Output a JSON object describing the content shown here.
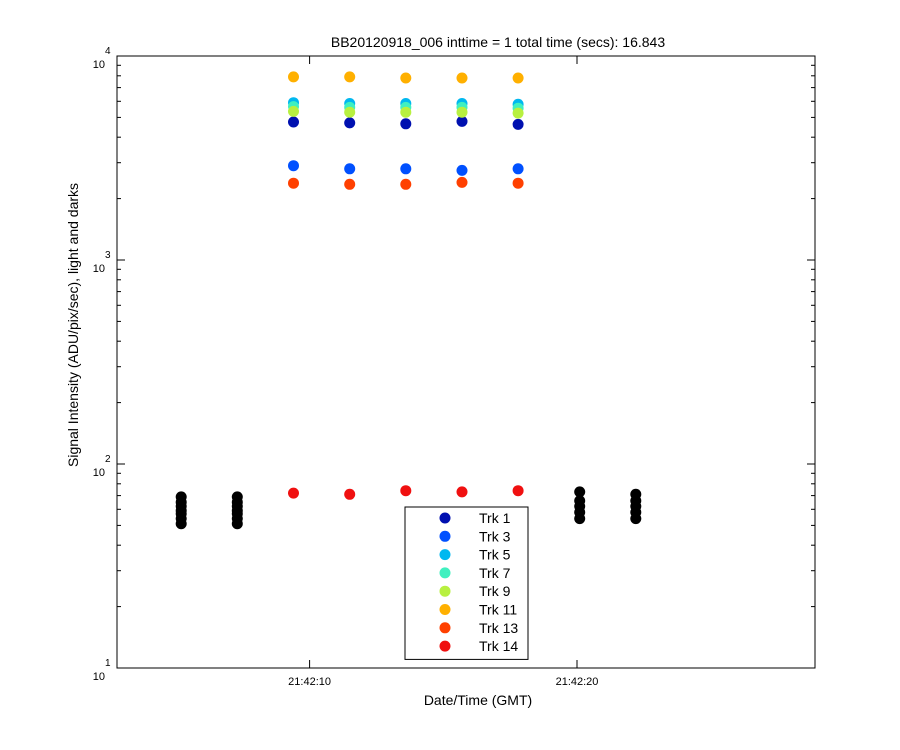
{
  "chart_data": {
    "type": "scatter",
    "title": "BB20120918_006 inttime = 1 total time (secs): 16.843",
    "xlabel": "Date/Time (GMT)",
    "ylabel": "Signal Intensity (ADU/pix/sec), light and darks",
    "yscale": "log",
    "ylim": [
      10,
      10000
    ],
    "y_ticks": [
      {
        "value": 10,
        "base": "10",
        "exp": "1"
      },
      {
        "value": 100,
        "base": "10",
        "exp": "2"
      },
      {
        "value": 1000,
        "base": "10",
        "exp": "3"
      },
      {
        "value": 10000,
        "base": "10",
        "exp": "4"
      }
    ],
    "x_unit": "seconds after 21:42:00",
    "xlim": [
      2.8,
      28.9
    ],
    "x_ticks": [
      {
        "value": 10,
        "label": "21:42:10"
      },
      {
        "value": 20,
        "label": "21:42:20"
      }
    ],
    "grid": false,
    "legend_position": "bottom-center",
    "series": [
      {
        "name": "Trk 1",
        "color": "#0010b0",
        "x": [
          9.4,
          11.5,
          13.6,
          15.7,
          17.8
        ],
        "y": [
          4750,
          4700,
          4650,
          4780,
          4620
        ]
      },
      {
        "name": "Trk 3",
        "color": "#0050ff",
        "x": [
          9.4,
          11.5,
          13.6,
          15.7,
          17.8
        ],
        "y": [
          2900,
          2800,
          2800,
          2750,
          2800
        ]
      },
      {
        "name": "Trk 5",
        "color": "#00b8f0",
        "x": [
          9.4,
          11.5,
          13.6,
          15.7,
          17.8
        ],
        "y": [
          5900,
          5850,
          5850,
          5850,
          5800
        ]
      },
      {
        "name": "Trk 7",
        "color": "#40f0c0",
        "x": [
          9.4,
          11.5,
          13.6,
          15.7,
          17.8
        ],
        "y": [
          5650,
          5600,
          5600,
          5600,
          5550
        ]
      },
      {
        "name": "Trk 9",
        "color": "#b8f040",
        "x": [
          9.4,
          11.5,
          13.6,
          15.7,
          17.8
        ],
        "y": [
          5350,
          5300,
          5300,
          5300,
          5250
        ]
      },
      {
        "name": "Trk 11",
        "color": "#ffb000",
        "x": [
          9.4,
          11.5,
          13.6,
          15.7,
          17.8
        ],
        "y": [
          7900,
          7900,
          7800,
          7800,
          7800
        ]
      },
      {
        "name": "Trk 13",
        "color": "#ff4000",
        "x": [
          9.4,
          11.5,
          13.6,
          15.7,
          17.8
        ],
        "y": [
          2380,
          2350,
          2350,
          2400,
          2380
        ]
      },
      {
        "name": "Trk 14",
        "color": "#f01010",
        "x": [
          9.4,
          11.5,
          13.6,
          15.7,
          17.8
        ],
        "y": [
          72,
          71,
          74,
          73,
          74
        ]
      },
      {
        "name": "",
        "color": "#000000",
        "x": [
          5.2,
          5.2,
          5.2,
          5.2,
          5.2,
          5.2,
          5.2,
          7.3,
          7.3,
          7.3,
          7.3,
          7.3,
          7.3,
          7.3,
          20.1,
          20.1,
          20.1,
          20.1,
          20.1,
          22.2,
          22.2,
          22.2,
          22.2,
          22.2
        ],
        "y": [
          51,
          54,
          57,
          59,
          62,
          65,
          69,
          51,
          54,
          57,
          59,
          62,
          65,
          69,
          54,
          58,
          62,
          66,
          73,
          54,
          58,
          62,
          66,
          71
        ]
      }
    ]
  }
}
